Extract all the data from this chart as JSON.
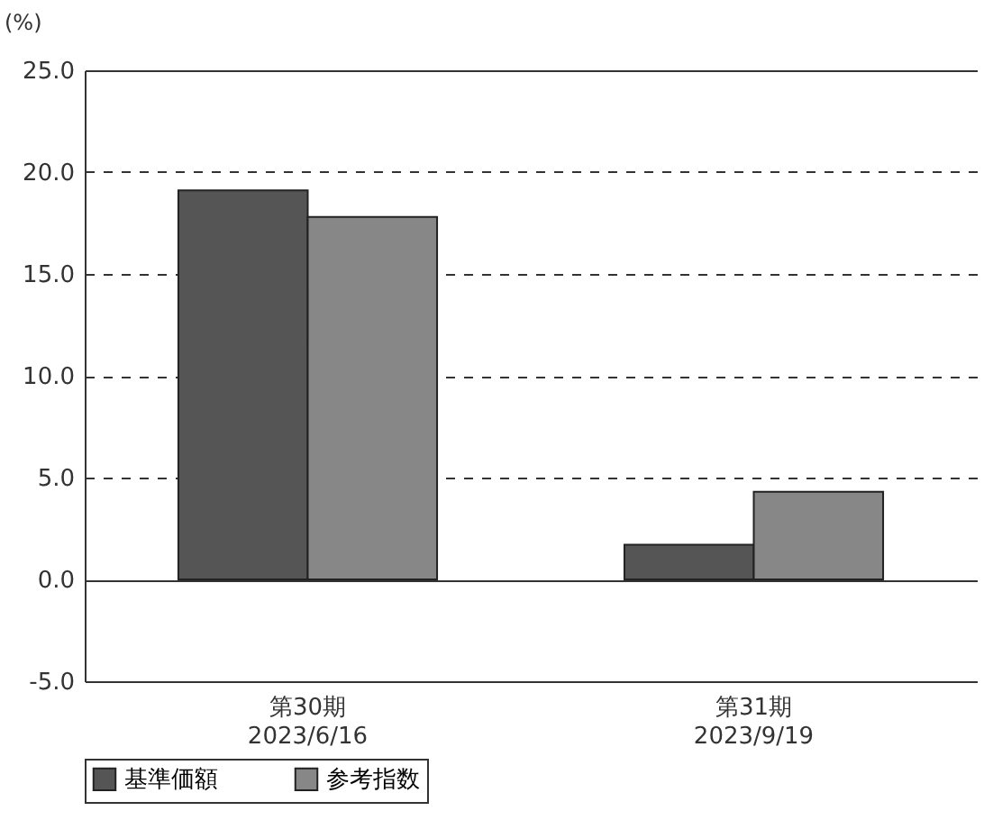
{
  "chart_data": {
    "type": "bar",
    "ylabel": "(%)",
    "categories": [
      "第30期\n2023/6/16",
      "第31期\n2023/9/19"
    ],
    "series": [
      {
        "name": "基準価額",
        "color": "#555555",
        "values": [
          19.1,
          1.7
        ]
      },
      {
        "name": "参考指数",
        "color": "#878787",
        "values": [
          17.8,
          4.3
        ]
      }
    ],
    "ylim": [
      -5,
      25
    ],
    "yticks": [
      {
        "value": -5,
        "label": "-5.0"
      },
      {
        "value": 0,
        "label": "0.0"
      },
      {
        "value": 5,
        "label": "5.0"
      },
      {
        "value": 10,
        "label": "10.0"
      },
      {
        "value": 15,
        "label": "15.0"
      },
      {
        "value": 20,
        "label": "20.0"
      },
      {
        "value": 25,
        "label": "25.0"
      }
    ],
    "grid": "y",
    "legend": "bottom"
  }
}
